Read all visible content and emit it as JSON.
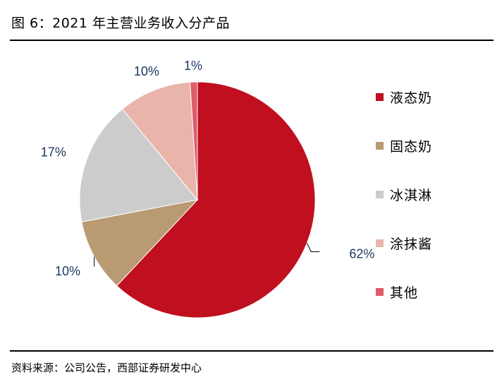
{
  "header": {
    "title": "图 6：2021 年主营业务收入分产品"
  },
  "footer": {
    "source": "资料来源：公司公告，西部证券研发中心"
  },
  "chart_data": {
    "type": "pie",
    "title": "",
    "start": "12 o'clock",
    "direction": "clockwise",
    "legend_position": "right",
    "label_color": "#1f3864",
    "slices": [
      {
        "name": "液态奶",
        "value": 62,
        "label": "62%",
        "color": "#c00f1e"
      },
      {
        "name": "固态奶",
        "value": 10,
        "label": "10%",
        "color": "#b99a72"
      },
      {
        "name": "冰淇淋",
        "value": 17,
        "label": "17%",
        "color": "#cccccc"
      },
      {
        "name": "涂抹酱",
        "value": 10,
        "label": "10%",
        "color": "#e9b4aa"
      },
      {
        "name": "其他",
        "value": 1,
        "label": "1%",
        "color": "#df5c6a"
      }
    ]
  }
}
